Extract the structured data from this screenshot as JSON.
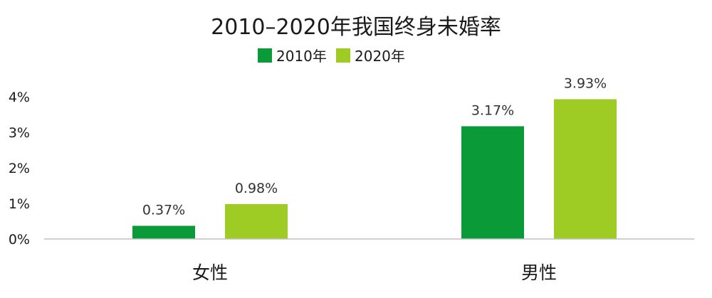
{
  "chart_data": {
    "type": "bar",
    "title": "2010–2020年我国终身未婚率",
    "categories": [
      "女性",
      "男性"
    ],
    "series": [
      {
        "name": "2010年",
        "color": "#0a9a37",
        "values": [
          0.37,
          3.17
        ],
        "labels": [
          "0.37%",
          "3.17%"
        ]
      },
      {
        "name": "2020年",
        "color": "#9ecb24",
        "values": [
          0.98,
          3.93
        ],
        "labels": [
          "0.98%",
          "3.93%"
        ]
      }
    ],
    "yticks": [
      {
        "value": 0,
        "label": "0%"
      },
      {
        "value": 1,
        "label": "1%"
      },
      {
        "value": 2,
        "label": "2%"
      },
      {
        "value": 3,
        "label": "3%"
      },
      {
        "value": 4,
        "label": "4%"
      }
    ],
    "ylim": [
      0,
      4
    ],
    "grid": false,
    "legend": "top-center",
    "axis_color": "#bfbfbf"
  }
}
